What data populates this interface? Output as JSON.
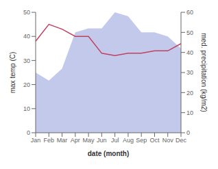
{
  "chart_data": {
    "type": "line",
    "xlabel": "date (month)",
    "ylabel": "max temp (C)",
    "y2label": "med. precipitation (kg/m2)",
    "categories": [
      "Jan",
      "Feb",
      "Mar",
      "Apr",
      "May",
      "Jun",
      "Jul",
      "Aug",
      "Sep",
      "Oct",
      "Nov",
      "Dec"
    ],
    "series": [
      {
        "type": "area",
        "axis": "y2",
        "color": "#b8c0e8",
        "values": [
          30,
          26,
          32,
          50,
          52,
          52,
          60,
          58,
          50,
          50,
          48,
          42
        ]
      },
      {
        "type": "line",
        "color": "#c04060",
        "values": [
          38,
          45,
          43,
          40,
          40,
          33,
          32,
          33,
          33,
          34,
          34,
          37
        ]
      }
    ],
    "ylim": [
      0,
      50
    ],
    "yticks": [
      0,
      10,
      20,
      30,
      40,
      50
    ],
    "y2lim": [
      0,
      60
    ],
    "y2ticks": [
      0,
      10,
      20,
      30,
      40,
      50,
      60
    ],
    "grid": false
  }
}
